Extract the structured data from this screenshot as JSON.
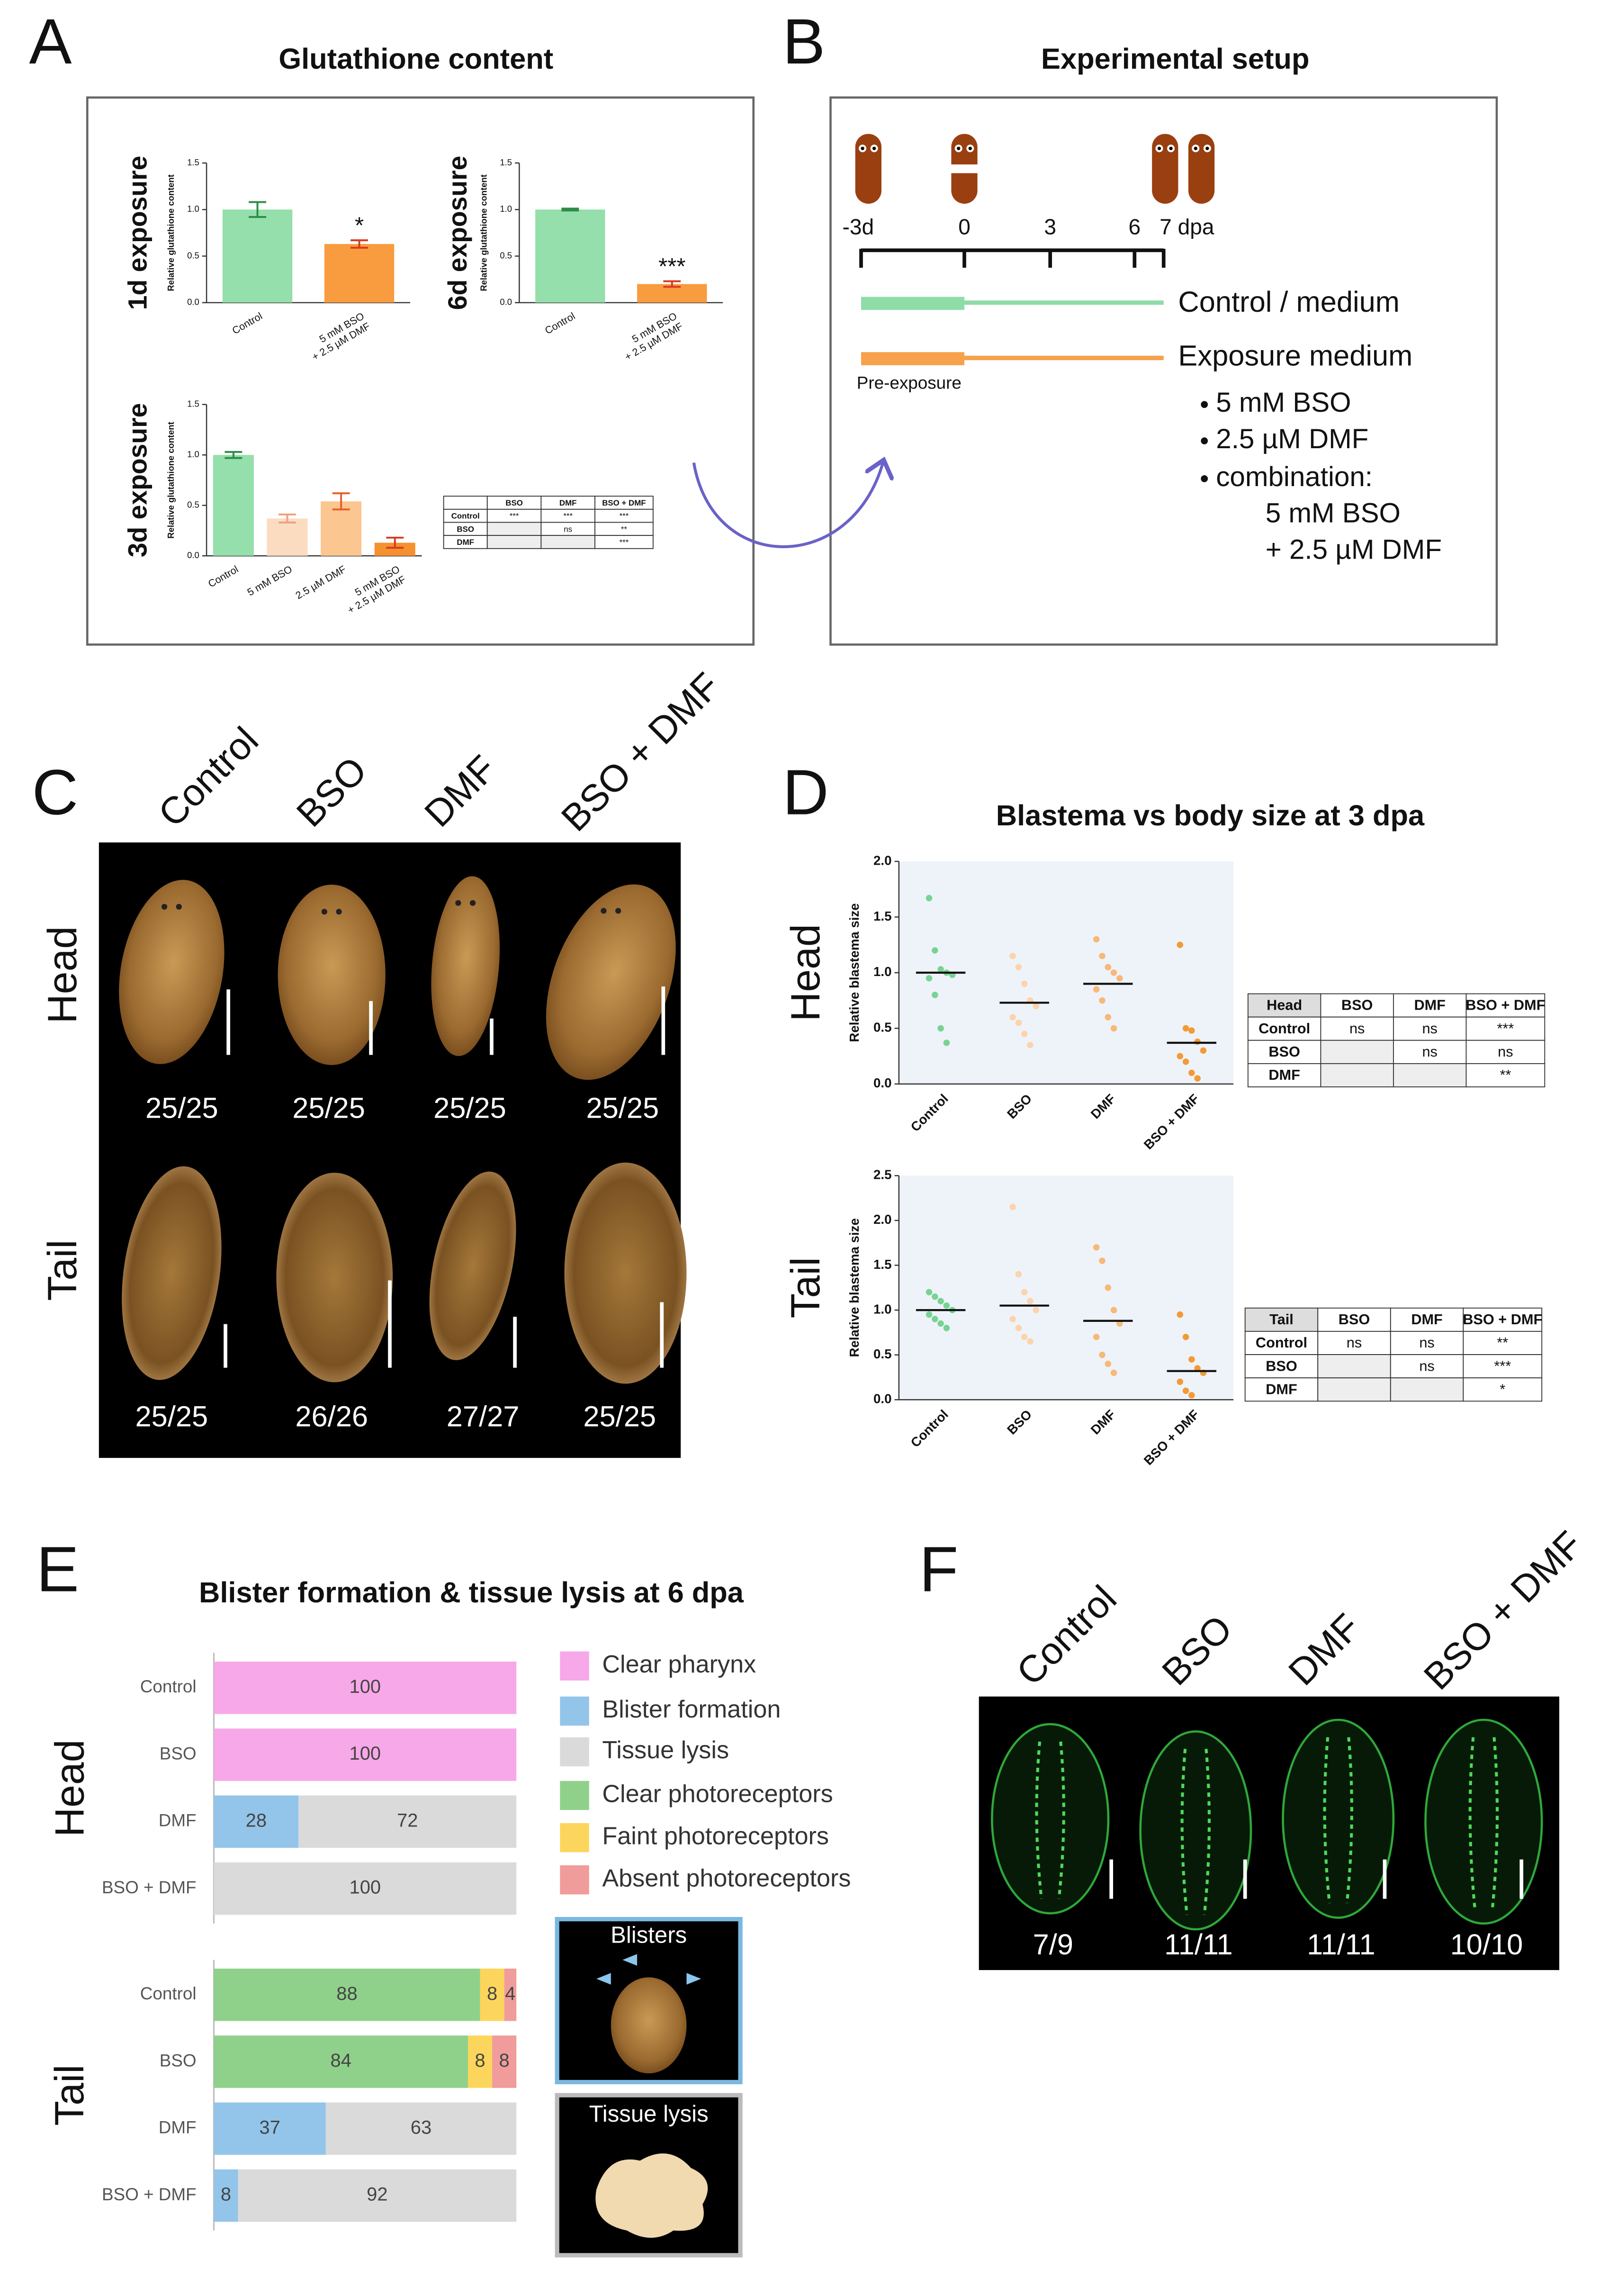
{
  "panel_labels": [
    "A",
    "B",
    "C",
    "D",
    "E",
    "F"
  ],
  "panel_a": {
    "title": "Glutathione content",
    "table": {
      "columns": [
        "BSO",
        "DMF",
        "BSO + DMF"
      ],
      "rows": [
        {
          "label": "Control",
          "cells": [
            "***",
            "***",
            "***"
          ]
        },
        {
          "label": "BSO",
          "cells": [
            null,
            "ns",
            "**"
          ]
        },
        {
          "label": "DMF",
          "cells": [
            null,
            null,
            "***"
          ]
        }
      ]
    }
  },
  "panel_b": {
    "title": "Experimental setup",
    "timeline": [
      "-3d",
      "0",
      "3",
      "6",
      "7 dpa"
    ],
    "control_label": "Control / medium",
    "exposure_label": "Exposure medium",
    "pre_exposure_label": "Pre-exposure",
    "treatments": [
      "5 mM BSO",
      "2.5 µM DMF",
      "combination:"
    ],
    "combination": [
      "5 mM BSO",
      "+ 2.5 µM DMF"
    ]
  },
  "panel_c": {
    "columns": [
      "Control",
      "BSO",
      "DMF",
      "BSO + DMF"
    ],
    "rows": [
      {
        "label": "Head",
        "counts": [
          "25/25",
          "25/25",
          "25/25",
          "25/25"
        ]
      },
      {
        "label": "Tail",
        "counts": [
          "25/25",
          "26/26",
          "27/27",
          "25/25"
        ]
      }
    ]
  },
  "panel_d": {
    "title": "Blastema vs body size at 3 dpa",
    "tables": [
      {
        "corner": "Head",
        "columns": [
          "BSO",
          "DMF",
          "BSO + DMF"
        ],
        "rows": [
          {
            "label": "Control",
            "cells": [
              "ns",
              "ns",
              "***"
            ]
          },
          {
            "label": "BSO",
            "cells": [
              null,
              "ns",
              "ns"
            ]
          },
          {
            "label": "DMF",
            "cells": [
              null,
              null,
              "**"
            ]
          }
        ]
      },
      {
        "corner": "Tail",
        "columns": [
          "BSO",
          "DMF",
          "BSO + DMF"
        ],
        "rows": [
          {
            "label": "Control",
            "cells": [
              "ns",
              "ns",
              "**"
            ]
          },
          {
            "label": "BSO",
            "cells": [
              null,
              "ns",
              "***"
            ]
          },
          {
            "label": "DMF",
            "cells": [
              null,
              null,
              "*"
            ]
          }
        ]
      }
    ]
  },
  "panel_e": {
    "title": "Blister formation & tissue lysis at 6 dpa",
    "insets": [
      "Blisters",
      "Tissue lysis"
    ]
  },
  "panel_f": {
    "columns": [
      "Control",
      "BSO",
      "DMF",
      "BSO + DMF"
    ],
    "counts": [
      "7/9",
      "11/11",
      "11/11",
      "10/10"
    ]
  },
  "chart_data": [
    {
      "type": "bar",
      "title": "1d exposure",
      "ylabel": "Relative glutathione content",
      "categories": [
        [
          "Control"
        ],
        [
          "5 mM BSO",
          "+ 2.5 µM DMF"
        ]
      ],
      "values": [
        1.0,
        0.63
      ],
      "errors": [
        0.08,
        0.04
      ],
      "colors": [
        "#94dfab",
        "#f89c3f"
      ],
      "error_colors": [
        "#2e8b46",
        "#d83a1e"
      ],
      "annotations": [
        null,
        "*"
      ],
      "ylim": [
        0,
        1.5
      ],
      "yticks": [
        {
          "value": 0,
          "label": "0.0"
        },
        0.5,
        {
          "value": 1,
          "label": "1.0"
        },
        1.5
      ]
    },
    {
      "type": "bar",
      "title": "6d exposure",
      "ylabel": "Relative glutathione content",
      "categories": [
        [
          "Control"
        ],
        [
          "5 mM BSO",
          "+ 2.5 µM DMF"
        ]
      ],
      "values": [
        1.0,
        0.2
      ],
      "errors": [
        0.01,
        0.03
      ],
      "colors": [
        "#94dfab",
        "#f89c3f"
      ],
      "error_colors": [
        "#2e8b46",
        "#d83a1e"
      ],
      "annotations": [
        null,
        "***"
      ],
      "ylim": [
        0,
        1.5
      ],
      "yticks": [
        {
          "value": 0,
          "label": "0.0"
        },
        0.5,
        {
          "value": 1,
          "label": "1.0"
        },
        1.5
      ]
    },
    {
      "type": "bar",
      "title": "3d exposure",
      "ylabel": "Relative glutathione content",
      "categories": [
        [
          "Control"
        ],
        [
          "5 mM BSO"
        ],
        [
          "2.5 µM DMF"
        ],
        [
          "5 mM BSO",
          "+ 2.5 µM DMF"
        ]
      ],
      "values": [
        1.0,
        0.37,
        0.54,
        0.13
      ],
      "errors": [
        0.03,
        0.04,
        0.08,
        0.05
      ],
      "colors": [
        "#94dfab",
        "#fcdcc0",
        "#fbc690",
        "#f5912f"
      ],
      "error_colors": [
        "#2e8b46",
        "#f0a080",
        "#e8602a",
        "#d83a1e"
      ],
      "ylim": [
        0,
        1.5
      ],
      "yticks": [
        {
          "value": 0,
          "label": "0.0"
        },
        0.5,
        {
          "value": 1,
          "label": "1.0"
        },
        1.5
      ]
    },
    {
      "type": "strip",
      "title": "Head",
      "ylabel": "Relative blastema size",
      "categories": [
        "Control",
        "BSO",
        "DMF",
        "BSO + DMF"
      ],
      "colors": [
        "#77d393",
        "#fcd3ac",
        "#f8b878",
        "#f39a35"
      ],
      "points": [
        [
          1.67,
          1.2,
          1.03,
          1.0,
          0.98,
          0.95,
          0.8,
          0.5,
          0.37
        ],
        [
          1.15,
          1.05,
          0.9,
          0.75,
          0.7,
          0.6,
          0.55,
          0.45,
          0.35
        ],
        [
          1.3,
          1.15,
          1.05,
          1.0,
          0.95,
          0.85,
          0.75,
          0.6,
          0.5
        ],
        [
          1.25,
          0.5,
          0.48,
          0.38,
          0.3,
          0.25,
          0.2,
          0.1,
          0.05
        ]
      ],
      "means": [
        1.0,
        0.73,
        0.9,
        0.37
      ],
      "ylim": [
        0,
        2
      ],
      "yticks": [
        {
          "value": 0,
          "label": "0.0"
        },
        0.5,
        {
          "value": 1,
          "label": "1.0"
        },
        1.5,
        {
          "value": 2,
          "label": "2.0"
        }
      ]
    },
    {
      "type": "strip",
      "title": "Tail",
      "ylabel": "Relative blastema size",
      "categories": [
        "Control",
        "BSO",
        "DMF",
        "BSO + DMF"
      ],
      "colors": [
        "#77d393",
        "#fcd3ac",
        "#f8b878",
        "#f39a35"
      ],
      "points": [
        [
          1.2,
          1.15,
          1.1,
          1.05,
          1.0,
          0.95,
          0.9,
          0.85,
          0.8
        ],
        [
          2.15,
          1.4,
          1.2,
          1.1,
          1.0,
          0.9,
          0.8,
          0.7,
          0.65
        ],
        [
          1.7,
          1.55,
          1.25,
          1.0,
          0.85,
          0.7,
          0.5,
          0.4,
          0.3
        ],
        [
          0.95,
          0.7,
          0.45,
          0.35,
          0.3,
          0.2,
          0.1,
          0.05
        ]
      ],
      "means": [
        1.0,
        1.05,
        0.88,
        0.32
      ],
      "ylim": [
        0,
        2.5
      ],
      "yticks": [
        {
          "value": 0,
          "label": "0.0"
        },
        0.5,
        {
          "value": 1,
          "label": "1.0"
        },
        1.5,
        {
          "value": 2,
          "label": "2.0"
        },
        2.5
      ]
    },
    {
      "type": "stacked-bar-h",
      "xlim": [
        0,
        100
      ],
      "groups": [
        {
          "name": "Head",
          "categories": [
            "Control",
            "BSO",
            "DMF",
            "BSO + DMF"
          ]
        },
        {
          "name": "Tail",
          "categories": [
            "Control",
            "BSO",
            "DMF",
            "BSO + DMF"
          ]
        }
      ],
      "series": [
        {
          "name": "Clear pharynx",
          "color": "#f7a8e8",
          "values": [
            [
              100,
              100,
              0,
              0
            ],
            [
              0,
              0,
              0,
              0
            ]
          ]
        },
        {
          "name": "Blister formation",
          "color": "#93c5ea",
          "values": [
            [
              0,
              0,
              28,
              0
            ],
            [
              0,
              0,
              37,
              8
            ]
          ]
        },
        {
          "name": "Tissue lysis",
          "color": "#dadada",
          "values": [
            [
              0,
              0,
              72,
              100
            ],
            [
              0,
              0,
              63,
              92
            ]
          ]
        },
        {
          "name": "Clear photoreceptors",
          "color": "#8fd18b",
          "values": [
            [
              0,
              0,
              0,
              0
            ],
            [
              88,
              84,
              0,
              0
            ]
          ]
        },
        {
          "name": "Faint photoreceptors",
          "color": "#fcd65c",
          "values": [
            [
              0,
              0,
              0,
              0
            ],
            [
              8,
              8,
              0,
              0
            ]
          ]
        },
        {
          "name": "Absent photoreceptors",
          "color": "#ef9c9a",
          "values": [
            [
              0,
              0,
              0,
              0
            ],
            [
              4,
              8,
              0,
              0
            ]
          ]
        }
      ]
    }
  ]
}
